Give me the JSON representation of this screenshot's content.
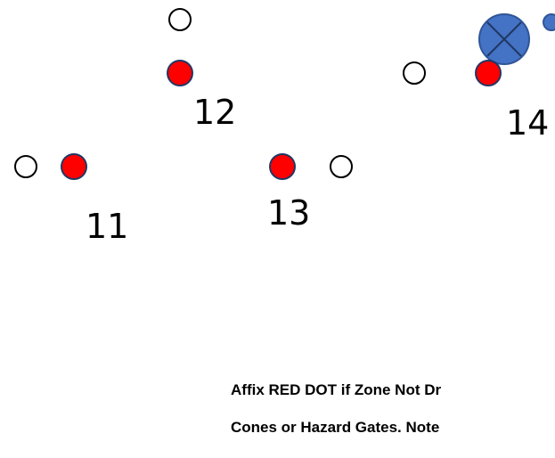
{
  "colors": {
    "background": "#ffffff",
    "red_dot": "#ff0000",
    "marker_outline": "#000000",
    "hazard_fill": "#4472c4",
    "hazard_stroke": "#2f5597"
  },
  "zones": [
    {
      "number": "11"
    },
    {
      "number": "12"
    },
    {
      "number": "13"
    },
    {
      "number": "14"
    }
  ],
  "icons": {
    "hazard_gate": "circle-with-x-icon",
    "cone_marker": "open-circle-icon",
    "red_dot_marker": "red-dot-icon"
  },
  "instructions": {
    "line1": "Affix RED DOT if Zone Not Dr",
    "line2": "Cones or Hazard Gates.  Note"
  }
}
